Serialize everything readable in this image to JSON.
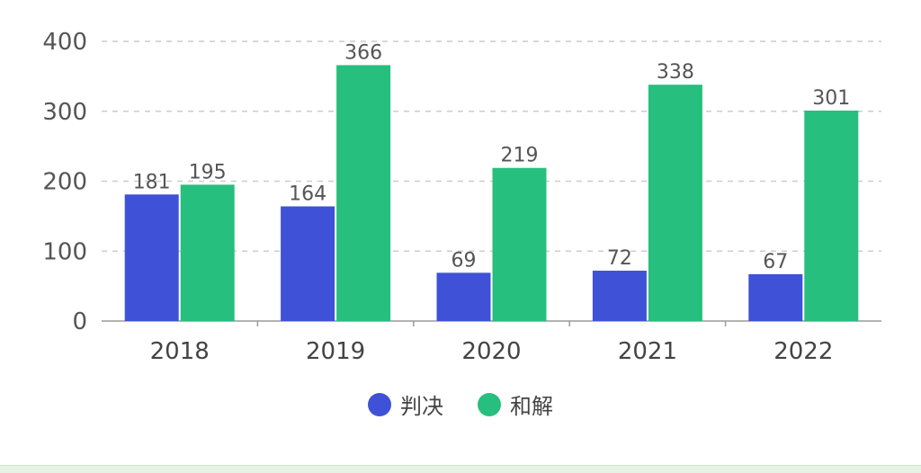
{
  "chart_data": {
    "type": "bar",
    "categories": [
      "2018",
      "2019",
      "2020",
      "2021",
      "2022"
    ],
    "series": [
      {
        "name": "判决",
        "color": "#3f51d6",
        "values": [
          181,
          164,
          69,
          72,
          67
        ]
      },
      {
        "name": "和解",
        "color": "#26bf7d",
        "values": [
          195,
          366,
          219,
          338,
          301
        ]
      }
    ],
    "ylim": [
      0,
      400
    ],
    "yticks": [
      0,
      100,
      200,
      300,
      400
    ],
    "grid": true,
    "legend_position": "bottom"
  }
}
